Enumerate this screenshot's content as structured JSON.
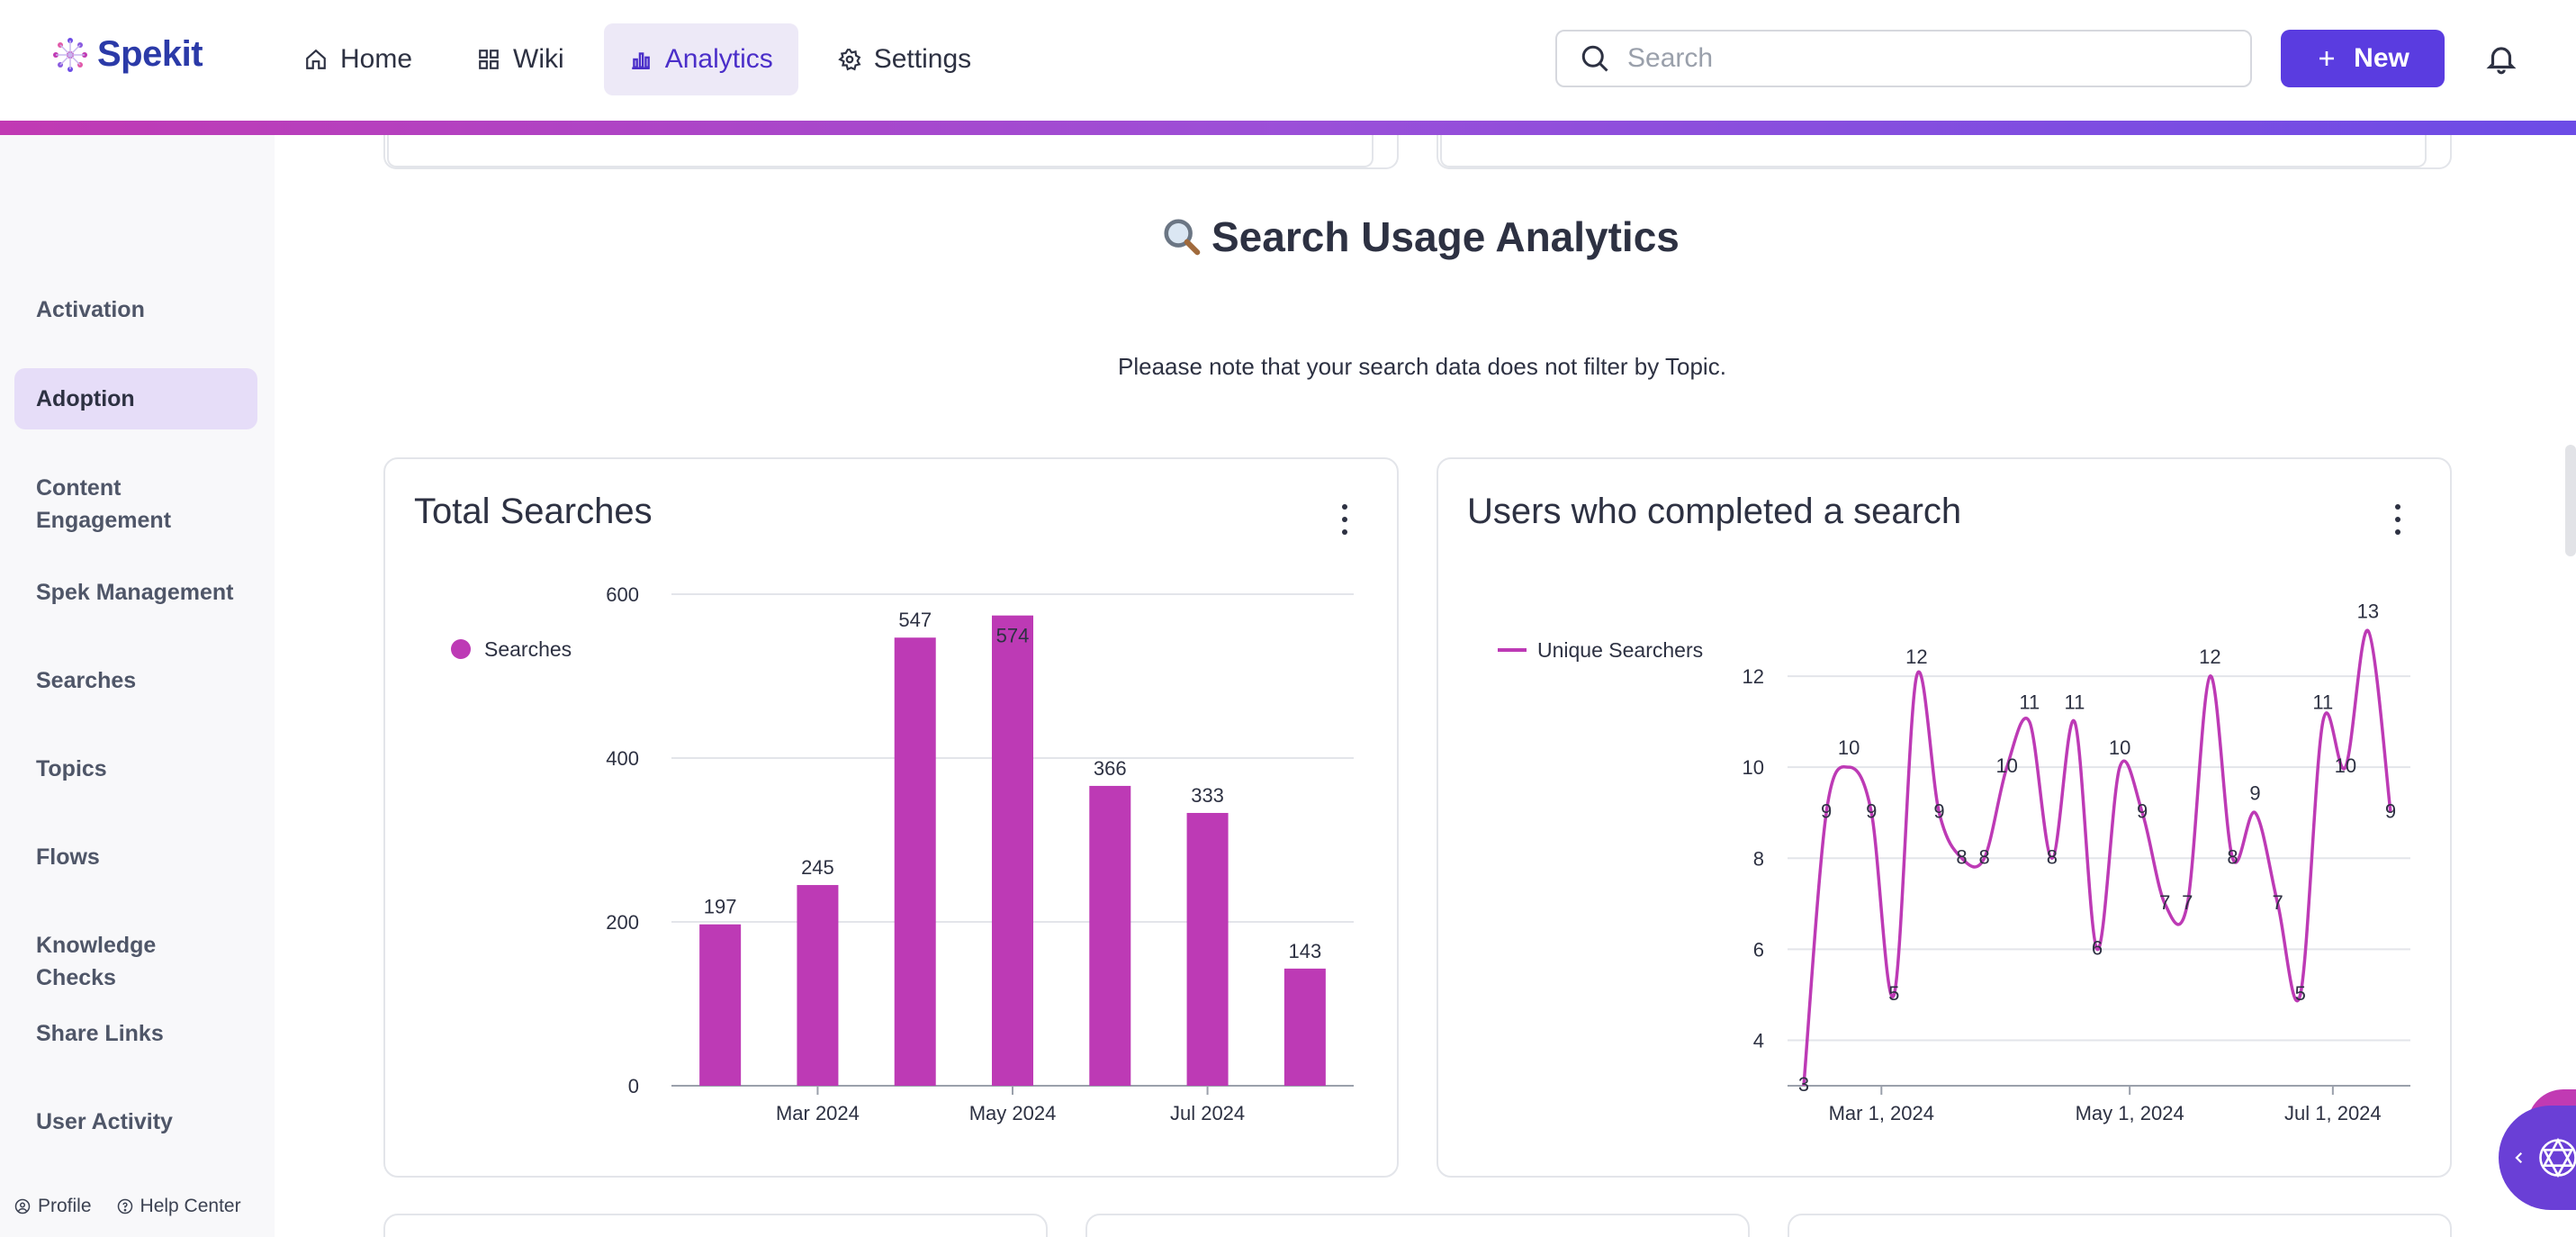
{
  "app": {
    "logo_text": "Spekit"
  },
  "nav": {
    "items": [
      {
        "label": "Home",
        "icon": "home-icon"
      },
      {
        "label": "Wiki",
        "icon": "grid-icon"
      },
      {
        "label": "Analytics",
        "icon": "chart-icon",
        "active": true
      },
      {
        "label": "Settings",
        "icon": "gear-icon"
      }
    ]
  },
  "header": {
    "search_placeholder": "Search",
    "new_button_label": "New"
  },
  "sidebar": {
    "items": [
      {
        "label": "Activation"
      },
      {
        "label": "Adoption",
        "active": true
      },
      {
        "label": "Content Engagement"
      },
      {
        "label": "Spek Management"
      },
      {
        "label": "Searches"
      },
      {
        "label": "Topics"
      },
      {
        "label": "Flows"
      },
      {
        "label": "Knowledge Checks"
      },
      {
        "label": "Share Links"
      },
      {
        "label": "User Activity"
      }
    ],
    "footer": {
      "profile": "Profile",
      "help": "Help Center"
    }
  },
  "main": {
    "section_title": "Search Usage Analytics",
    "section_icon": "magnifier-icon",
    "note": "Pleaase note that your search data does not filter by Topic."
  },
  "charts": {
    "total_searches_title": "Total Searches",
    "users_search_title": "Users who completed a search"
  },
  "colors": {
    "accent": "#5a3ce0",
    "series": "#bd3ab5",
    "gradient_start": "#c13ab3",
    "gradient_end": "#6c4ce6"
  },
  "chart_data": [
    {
      "type": "bar",
      "title": "Total Searches",
      "legend": {
        "entries": [
          "Searches"
        ],
        "placement": "left"
      },
      "series": [
        {
          "name": "Searches",
          "values": [
            197,
            245,
            547,
            574,
            366,
            333,
            143
          ]
        }
      ],
      "x_tick_labels": [
        "Mar 2024",
        "May 2024",
        "Jul 2024"
      ],
      "y_ticks": [
        0,
        200,
        400,
        600
      ],
      "ylim": [
        0,
        600
      ],
      "grid": true
    },
    {
      "type": "line",
      "title": "Users who completed a search",
      "legend": {
        "entries": [
          "Unique Searchers"
        ],
        "placement": "left"
      },
      "series": [
        {
          "name": "Unique Searchers",
          "values": [
            3,
            9,
            10,
            9,
            5,
            12,
            9,
            8,
            8,
            10,
            11,
            8,
            11,
            6,
            10,
            9,
            7,
            7,
            12,
            8,
            9,
            7,
            5,
            11,
            10,
            13,
            9
          ]
        }
      ],
      "x_tick_labels": [
        "Mar 1, 2024",
        "May 1, 2024",
        "Jul 1, 2024"
      ],
      "y_ticks": [
        4,
        6,
        8,
        10,
        12
      ],
      "ylim": [
        3,
        14
      ],
      "grid": true
    }
  ]
}
